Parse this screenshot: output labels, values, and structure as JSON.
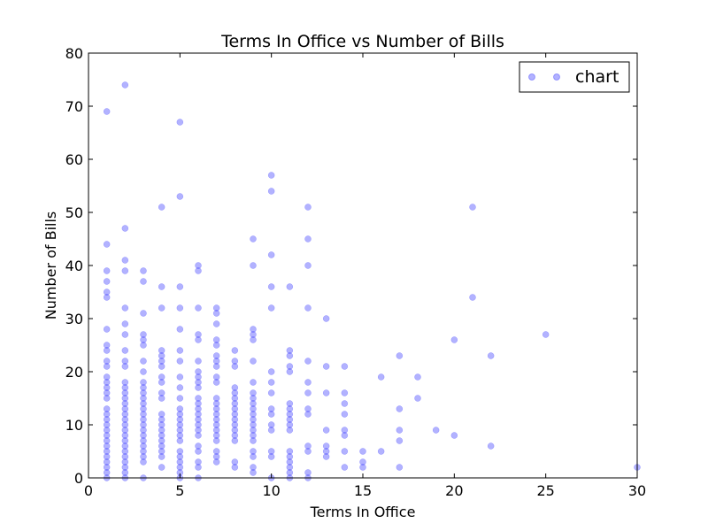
{
  "chart_data": {
    "type": "scatter",
    "title": "Terms In Office vs Number of Bills",
    "xlabel": "Terms In Office",
    "ylabel": "Number of Bills",
    "xlim": [
      0,
      30
    ],
    "ylim": [
      0,
      80
    ],
    "xticks": [
      0,
      5,
      10,
      15,
      20,
      25,
      30
    ],
    "yticks": [
      0,
      10,
      20,
      30,
      40,
      50,
      60,
      70,
      80
    ],
    "grid": false,
    "legend_position": "top-right",
    "series": [
      {
        "name": "chart",
        "color": "#0000ff",
        "alpha": 0.3,
        "points": [
          [
            1,
            69
          ],
          [
            1,
            44
          ],
          [
            1,
            39
          ],
          [
            1,
            37
          ],
          [
            1,
            35
          ],
          [
            1,
            34
          ],
          [
            1,
            28
          ],
          [
            1,
            25
          ],
          [
            1,
            24
          ],
          [
            1,
            22
          ],
          [
            1,
            21
          ],
          [
            1,
            19
          ],
          [
            1,
            18
          ],
          [
            1,
            17
          ],
          [
            1,
            16
          ],
          [
            1,
            15
          ],
          [
            1,
            13
          ],
          [
            1,
            12
          ],
          [
            1,
            11
          ],
          [
            1,
            10
          ],
          [
            1,
            9
          ],
          [
            1,
            8
          ],
          [
            1,
            7
          ],
          [
            1,
            6
          ],
          [
            1,
            5
          ],
          [
            1,
            4
          ],
          [
            1,
            3
          ],
          [
            1,
            2
          ],
          [
            1,
            1
          ],
          [
            1,
            0
          ],
          [
            2,
            74
          ],
          [
            2,
            47
          ],
          [
            2,
            41
          ],
          [
            2,
            39
          ],
          [
            2,
            32
          ],
          [
            2,
            29
          ],
          [
            2,
            27
          ],
          [
            2,
            24
          ],
          [
            2,
            22
          ],
          [
            2,
            21
          ],
          [
            2,
            18
          ],
          [
            2,
            17
          ],
          [
            2,
            16
          ],
          [
            2,
            15
          ],
          [
            2,
            14
          ],
          [
            2,
            13
          ],
          [
            2,
            12
          ],
          [
            2,
            11
          ],
          [
            2,
            10
          ],
          [
            2,
            9
          ],
          [
            2,
            8
          ],
          [
            2,
            7
          ],
          [
            2,
            6
          ],
          [
            2,
            5
          ],
          [
            2,
            4
          ],
          [
            2,
            3
          ],
          [
            2,
            2
          ],
          [
            2,
            1
          ],
          [
            2,
            0
          ],
          [
            3,
            39
          ],
          [
            3,
            37
          ],
          [
            3,
            31
          ],
          [
            3,
            27
          ],
          [
            3,
            26
          ],
          [
            3,
            25
          ],
          [
            3,
            22
          ],
          [
            3,
            20
          ],
          [
            3,
            18
          ],
          [
            3,
            17
          ],
          [
            3,
            16
          ],
          [
            3,
            15
          ],
          [
            3,
            14
          ],
          [
            3,
            13
          ],
          [
            3,
            12
          ],
          [
            3,
            11
          ],
          [
            3,
            10
          ],
          [
            3,
            9
          ],
          [
            3,
            8
          ],
          [
            3,
            7
          ],
          [
            3,
            6
          ],
          [
            3,
            5
          ],
          [
            3,
            4
          ],
          [
            3,
            3
          ],
          [
            3,
            0
          ],
          [
            4,
            51
          ],
          [
            4,
            36
          ],
          [
            4,
            32
          ],
          [
            4,
            24
          ],
          [
            4,
            23
          ],
          [
            4,
            22
          ],
          [
            4,
            21
          ],
          [
            4,
            19
          ],
          [
            4,
            18
          ],
          [
            4,
            16
          ],
          [
            4,
            15
          ],
          [
            4,
            12
          ],
          [
            4,
            11
          ],
          [
            4,
            10
          ],
          [
            4,
            9
          ],
          [
            4,
            8
          ],
          [
            4,
            7
          ],
          [
            4,
            6
          ],
          [
            4,
            5
          ],
          [
            4,
            4
          ],
          [
            4,
            2
          ],
          [
            5,
            67
          ],
          [
            5,
            53
          ],
          [
            5,
            36
          ],
          [
            5,
            32
          ],
          [
            5,
            28
          ],
          [
            5,
            24
          ],
          [
            5,
            22
          ],
          [
            5,
            19
          ],
          [
            5,
            17
          ],
          [
            5,
            15
          ],
          [
            5,
            13
          ],
          [
            5,
            12
          ],
          [
            5,
            11
          ],
          [
            5,
            10
          ],
          [
            5,
            9
          ],
          [
            5,
            8
          ],
          [
            5,
            7
          ],
          [
            5,
            5
          ],
          [
            5,
            4
          ],
          [
            5,
            3
          ],
          [
            5,
            2
          ],
          [
            5,
            1
          ],
          [
            5,
            0
          ],
          [
            6,
            40
          ],
          [
            6,
            39
          ],
          [
            6,
            32
          ],
          [
            6,
            27
          ],
          [
            6,
            26
          ],
          [
            6,
            22
          ],
          [
            6,
            20
          ],
          [
            6,
            19
          ],
          [
            6,
            18
          ],
          [
            6,
            17
          ],
          [
            6,
            15
          ],
          [
            6,
            14
          ],
          [
            6,
            13
          ],
          [
            6,
            12
          ],
          [
            6,
            11
          ],
          [
            6,
            10
          ],
          [
            6,
            9
          ],
          [
            6,
            8
          ],
          [
            6,
            6
          ],
          [
            6,
            5
          ],
          [
            6,
            3
          ],
          [
            6,
            2
          ],
          [
            6,
            0
          ],
          [
            7,
            32
          ],
          [
            7,
            31
          ],
          [
            7,
            29
          ],
          [
            7,
            26
          ],
          [
            7,
            25
          ],
          [
            7,
            23
          ],
          [
            7,
            22
          ],
          [
            7,
            21
          ],
          [
            7,
            19
          ],
          [
            7,
            18
          ],
          [
            7,
            15
          ],
          [
            7,
            14
          ],
          [
            7,
            13
          ],
          [
            7,
            12
          ],
          [
            7,
            11
          ],
          [
            7,
            10
          ],
          [
            7,
            9
          ],
          [
            7,
            8
          ],
          [
            7,
            7
          ],
          [
            7,
            5
          ],
          [
            7,
            4
          ],
          [
            7,
            3
          ],
          [
            8,
            24
          ],
          [
            8,
            22
          ],
          [
            8,
            21
          ],
          [
            8,
            17
          ],
          [
            8,
            16
          ],
          [
            8,
            15
          ],
          [
            8,
            14
          ],
          [
            8,
            13
          ],
          [
            8,
            12
          ],
          [
            8,
            11
          ],
          [
            8,
            10
          ],
          [
            8,
            9
          ],
          [
            8,
            8
          ],
          [
            8,
            7
          ],
          [
            8,
            3
          ],
          [
            8,
            2
          ],
          [
            9,
            45
          ],
          [
            9,
            40
          ],
          [
            9,
            28
          ],
          [
            9,
            27
          ],
          [
            9,
            26
          ],
          [
            9,
            22
          ],
          [
            9,
            18
          ],
          [
            9,
            16
          ],
          [
            9,
            15
          ],
          [
            9,
            14
          ],
          [
            9,
            13
          ],
          [
            9,
            12
          ],
          [
            9,
            11
          ],
          [
            9,
            10
          ],
          [
            9,
            9
          ],
          [
            9,
            8
          ],
          [
            9,
            7
          ],
          [
            9,
            5
          ],
          [
            9,
            4
          ],
          [
            9,
            2
          ],
          [
            9,
            1
          ],
          [
            10,
            57
          ],
          [
            10,
            54
          ],
          [
            10,
            42
          ],
          [
            10,
            36
          ],
          [
            10,
            32
          ],
          [
            10,
            20
          ],
          [
            10,
            18
          ],
          [
            10,
            16
          ],
          [
            10,
            13
          ],
          [
            10,
            12
          ],
          [
            10,
            10
          ],
          [
            10,
            9
          ],
          [
            10,
            5
          ],
          [
            10,
            4
          ],
          [
            10,
            0
          ],
          [
            11,
            36
          ],
          [
            11,
            24
          ],
          [
            11,
            23
          ],
          [
            11,
            21
          ],
          [
            11,
            20
          ],
          [
            11,
            14
          ],
          [
            11,
            13
          ],
          [
            11,
            12
          ],
          [
            11,
            11
          ],
          [
            11,
            10
          ],
          [
            11,
            9
          ],
          [
            11,
            5
          ],
          [
            11,
            4
          ],
          [
            11,
            3
          ],
          [
            11,
            2
          ],
          [
            11,
            1
          ],
          [
            11,
            0
          ],
          [
            12,
            51
          ],
          [
            12,
            45
          ],
          [
            12,
            40
          ],
          [
            12,
            32
          ],
          [
            12,
            22
          ],
          [
            12,
            18
          ],
          [
            12,
            16
          ],
          [
            12,
            13
          ],
          [
            12,
            12
          ],
          [
            12,
            6
          ],
          [
            12,
            5
          ],
          [
            12,
            1
          ],
          [
            12,
            0
          ],
          [
            13,
            30
          ],
          [
            13,
            21
          ],
          [
            13,
            16
          ],
          [
            13,
            9
          ],
          [
            13,
            6
          ],
          [
            13,
            5
          ],
          [
            13,
            4
          ],
          [
            14,
            21
          ],
          [
            14,
            16
          ],
          [
            14,
            14
          ],
          [
            14,
            12
          ],
          [
            14,
            9
          ],
          [
            14,
            8
          ],
          [
            14,
            5
          ],
          [
            14,
            2
          ],
          [
            15,
            5
          ],
          [
            15,
            3
          ],
          [
            15,
            2
          ],
          [
            16,
            19
          ],
          [
            16,
            5
          ],
          [
            17,
            23
          ],
          [
            17,
            13
          ],
          [
            17,
            9
          ],
          [
            17,
            7
          ],
          [
            17,
            2
          ],
          [
            18,
            19
          ],
          [
            18,
            15
          ],
          [
            19,
            9
          ],
          [
            20,
            26
          ],
          [
            20,
            8
          ],
          [
            21,
            51
          ],
          [
            21,
            34
          ],
          [
            22,
            23
          ],
          [
            22,
            6
          ],
          [
            25,
            27
          ],
          [
            30,
            2
          ]
        ]
      }
    ]
  }
}
